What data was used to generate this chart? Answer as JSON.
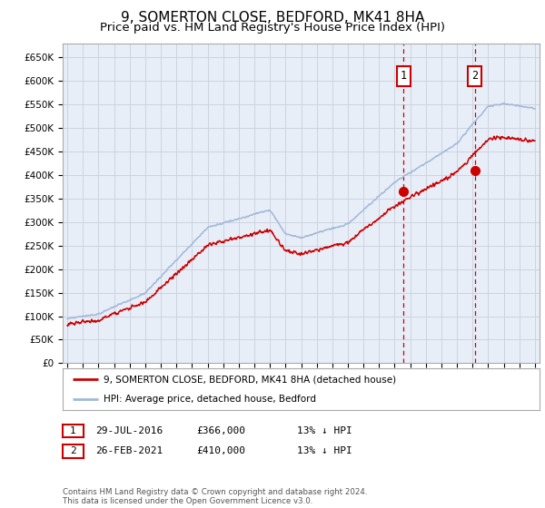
{
  "title": "9, SOMERTON CLOSE, BEDFORD, MK41 8HA",
  "subtitle": "Price paid vs. HM Land Registry's House Price Index (HPI)",
  "ylim": [
    0,
    680000
  ],
  "xlim_start": 1994.7,
  "xlim_end": 2025.3,
  "purchase1_x": 2016.57,
  "purchase1_y": 366000,
  "purchase2_x": 2021.15,
  "purchase2_y": 410000,
  "legend_line1": "9, SOMERTON CLOSE, BEDFORD, MK41 8HA (detached house)",
  "legend_line2": "HPI: Average price, detached house, Bedford",
  "table_row1": [
    "1",
    "29-JUL-2016",
    "£366,000",
    "13% ↓ HPI"
  ],
  "table_row2": [
    "2",
    "26-FEB-2021",
    "£410,000",
    "13% ↓ HPI"
  ],
  "footer": "Contains HM Land Registry data © Crown copyright and database right 2024.\nThis data is licensed under the Open Government Licence v3.0.",
  "hpi_color": "#a0b8d8",
  "price_color": "#cc0000",
  "bg_color": "#e8eef8",
  "plot_bg": "#ffffff",
  "grid_color": "#c8d0dc",
  "vline_color": "#cc0000",
  "box_color": "#cc0000",
  "title_fontsize": 11,
  "subtitle_fontsize": 9.5
}
